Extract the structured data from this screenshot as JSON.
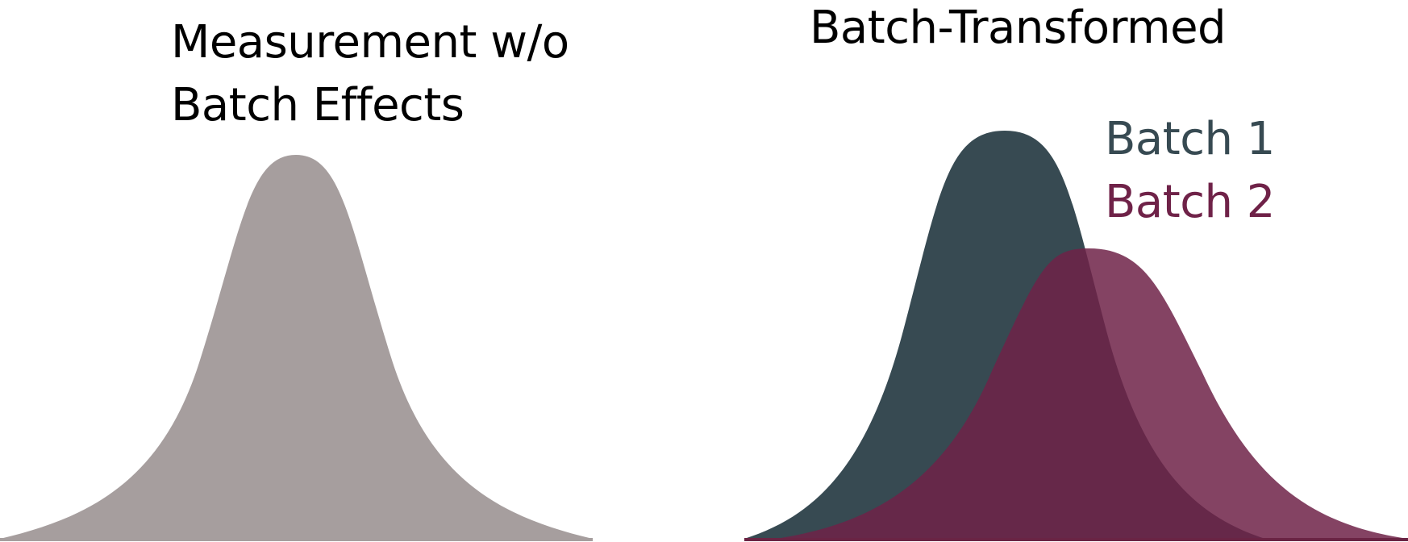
{
  "left_panel": {
    "title_line1": "Measurement w/o",
    "title_line2": "Batch Effects",
    "curve_color": "#a69e9e"
  },
  "right_panel": {
    "title": "Batch-Transformed",
    "legend": [
      {
        "label": "Batch 1",
        "color": "#374a52"
      },
      {
        "label": "Batch 2",
        "color": "#6f2248"
      }
    ],
    "overlap_color": "#6a2444"
  }
}
